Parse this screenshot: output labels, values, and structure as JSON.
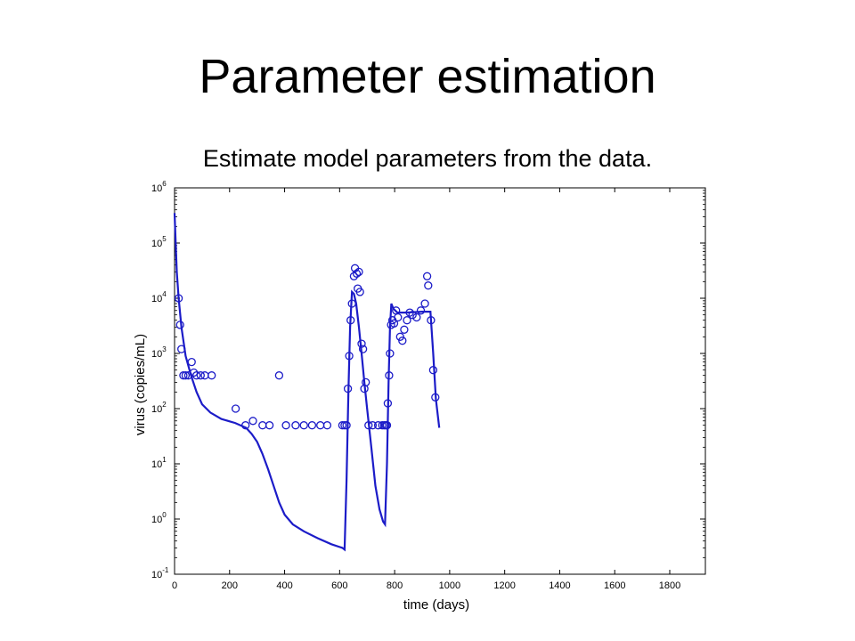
{
  "slide": {
    "title": "Parameter estimation",
    "subtitle": "Estimate model parameters from the data."
  },
  "colors": {
    "series": "#1c1cc8",
    "axes": "#000000"
  },
  "chart_data": {
    "type": "scatter",
    "title": "",
    "xlabel": "time (days)",
    "ylabel": "virus (copies/mL)",
    "xlim": [
      0,
      1900
    ],
    "ylim_log10": [
      -1,
      6
    ],
    "yscale": "log",
    "grid": false,
    "x_ticks": [
      0,
      200,
      400,
      600,
      800,
      1000,
      1200,
      1400,
      1600,
      1800
    ],
    "y_ticks": [
      {
        "base": "10",
        "exp": "-1"
      },
      {
        "base": "10",
        "exp": "0"
      },
      {
        "base": "10",
        "exp": "1"
      },
      {
        "base": "10",
        "exp": "2"
      },
      {
        "base": "10",
        "exp": "3"
      },
      {
        "base": "10",
        "exp": "4"
      },
      {
        "base": "10",
        "exp": "5"
      },
      {
        "base": "10",
        "exp": "6"
      }
    ],
    "series": [
      {
        "kind": "markers",
        "marker": "open-circle",
        "points": [
          [
            15,
            10000
          ],
          [
            20,
            3300
          ],
          [
            25,
            1200
          ],
          [
            32,
            400
          ],
          [
            40,
            400
          ],
          [
            50,
            400
          ],
          [
            62,
            700
          ],
          [
            70,
            450
          ],
          [
            80,
            400
          ],
          [
            95,
            400
          ],
          [
            110,
            400
          ],
          [
            135,
            400
          ],
          [
            222,
            100
          ],
          [
            258,
            50
          ],
          [
            285,
            60
          ],
          [
            320,
            50
          ],
          [
            345,
            50
          ],
          [
            380,
            400
          ],
          [
            405,
            50
          ],
          [
            440,
            50
          ],
          [
            470,
            50
          ],
          [
            500,
            50
          ],
          [
            530,
            50
          ],
          [
            555,
            50
          ],
          [
            610,
            50
          ],
          [
            618,
            50
          ],
          [
            625,
            50
          ],
          [
            630,
            230
          ],
          [
            635,
            900
          ],
          [
            640,
            4000
          ],
          [
            645,
            8000
          ],
          [
            652,
            25000
          ],
          [
            656,
            35000
          ],
          [
            662,
            28000
          ],
          [
            666,
            15000
          ],
          [
            670,
            30000
          ],
          [
            674,
            13000
          ],
          [
            680,
            1500
          ],
          [
            685,
            1200
          ],
          [
            690,
            230
          ],
          [
            695,
            300
          ],
          [
            705,
            50
          ],
          [
            720,
            50
          ],
          [
            740,
            50
          ],
          [
            755,
            50
          ],
          [
            762,
            50
          ],
          [
            768,
            50
          ],
          [
            772,
            50
          ],
          [
            775,
            125
          ],
          [
            780,
            400
          ],
          [
            783,
            1000
          ],
          [
            787,
            3300
          ],
          [
            792,
            4000
          ],
          [
            798,
            3500
          ],
          [
            805,
            6000
          ],
          [
            812,
            4500
          ],
          [
            820,
            2000
          ],
          [
            828,
            1700
          ],
          [
            835,
            2700
          ],
          [
            845,
            4000
          ],
          [
            855,
            5500
          ],
          [
            865,
            5000
          ],
          [
            880,
            4500
          ],
          [
            895,
            6000
          ],
          [
            910,
            8000
          ],
          [
            918,
            25000
          ],
          [
            922,
            17000
          ],
          [
            932,
            4000
          ],
          [
            940,
            500
          ],
          [
            948,
            160
          ]
        ]
      },
      {
        "kind": "line",
        "points": [
          [
            0,
            350000
          ],
          [
            8,
            30000
          ],
          [
            15,
            10000
          ],
          [
            25,
            3000
          ],
          [
            40,
            900
          ],
          [
            60,
            400
          ],
          [
            80,
            200
          ],
          [
            100,
            120
          ],
          [
            130,
            85
          ],
          [
            170,
            65
          ],
          [
            220,
            55
          ],
          [
            260,
            45
          ],
          [
            280,
            35
          ],
          [
            300,
            25
          ],
          [
            320,
            15
          ],
          [
            340,
            8
          ],
          [
            360,
            4
          ],
          [
            380,
            2
          ],
          [
            400,
            1.2
          ],
          [
            430,
            0.8
          ],
          [
            470,
            0.6
          ],
          [
            520,
            0.45
          ],
          [
            570,
            0.35
          ],
          [
            610,
            0.3
          ],
          [
            618,
            0.28
          ],
          [
            625,
            5
          ],
          [
            632,
            200
          ],
          [
            638,
            3000
          ],
          [
            645,
            13000
          ],
          [
            652,
            12000
          ],
          [
            660,
            8000
          ],
          [
            670,
            3000
          ],
          [
            680,
            1000
          ],
          [
            690,
            300
          ],
          [
            700,
            100
          ],
          [
            715,
            20
          ],
          [
            730,
            4
          ],
          [
            745,
            1.5
          ],
          [
            758,
            0.9
          ],
          [
            765,
            0.8
          ],
          [
            772,
            10
          ],
          [
            778,
            300
          ],
          [
            783,
            3000
          ],
          [
            788,
            8000
          ],
          [
            795,
            6500
          ],
          [
            810,
            5500
          ],
          [
            840,
            5500
          ],
          [
            900,
            5700
          ],
          [
            930,
            5700
          ],
          [
            940,
            1000
          ],
          [
            950,
            150
          ],
          [
            962,
            45
          ]
        ]
      }
    ]
  }
}
